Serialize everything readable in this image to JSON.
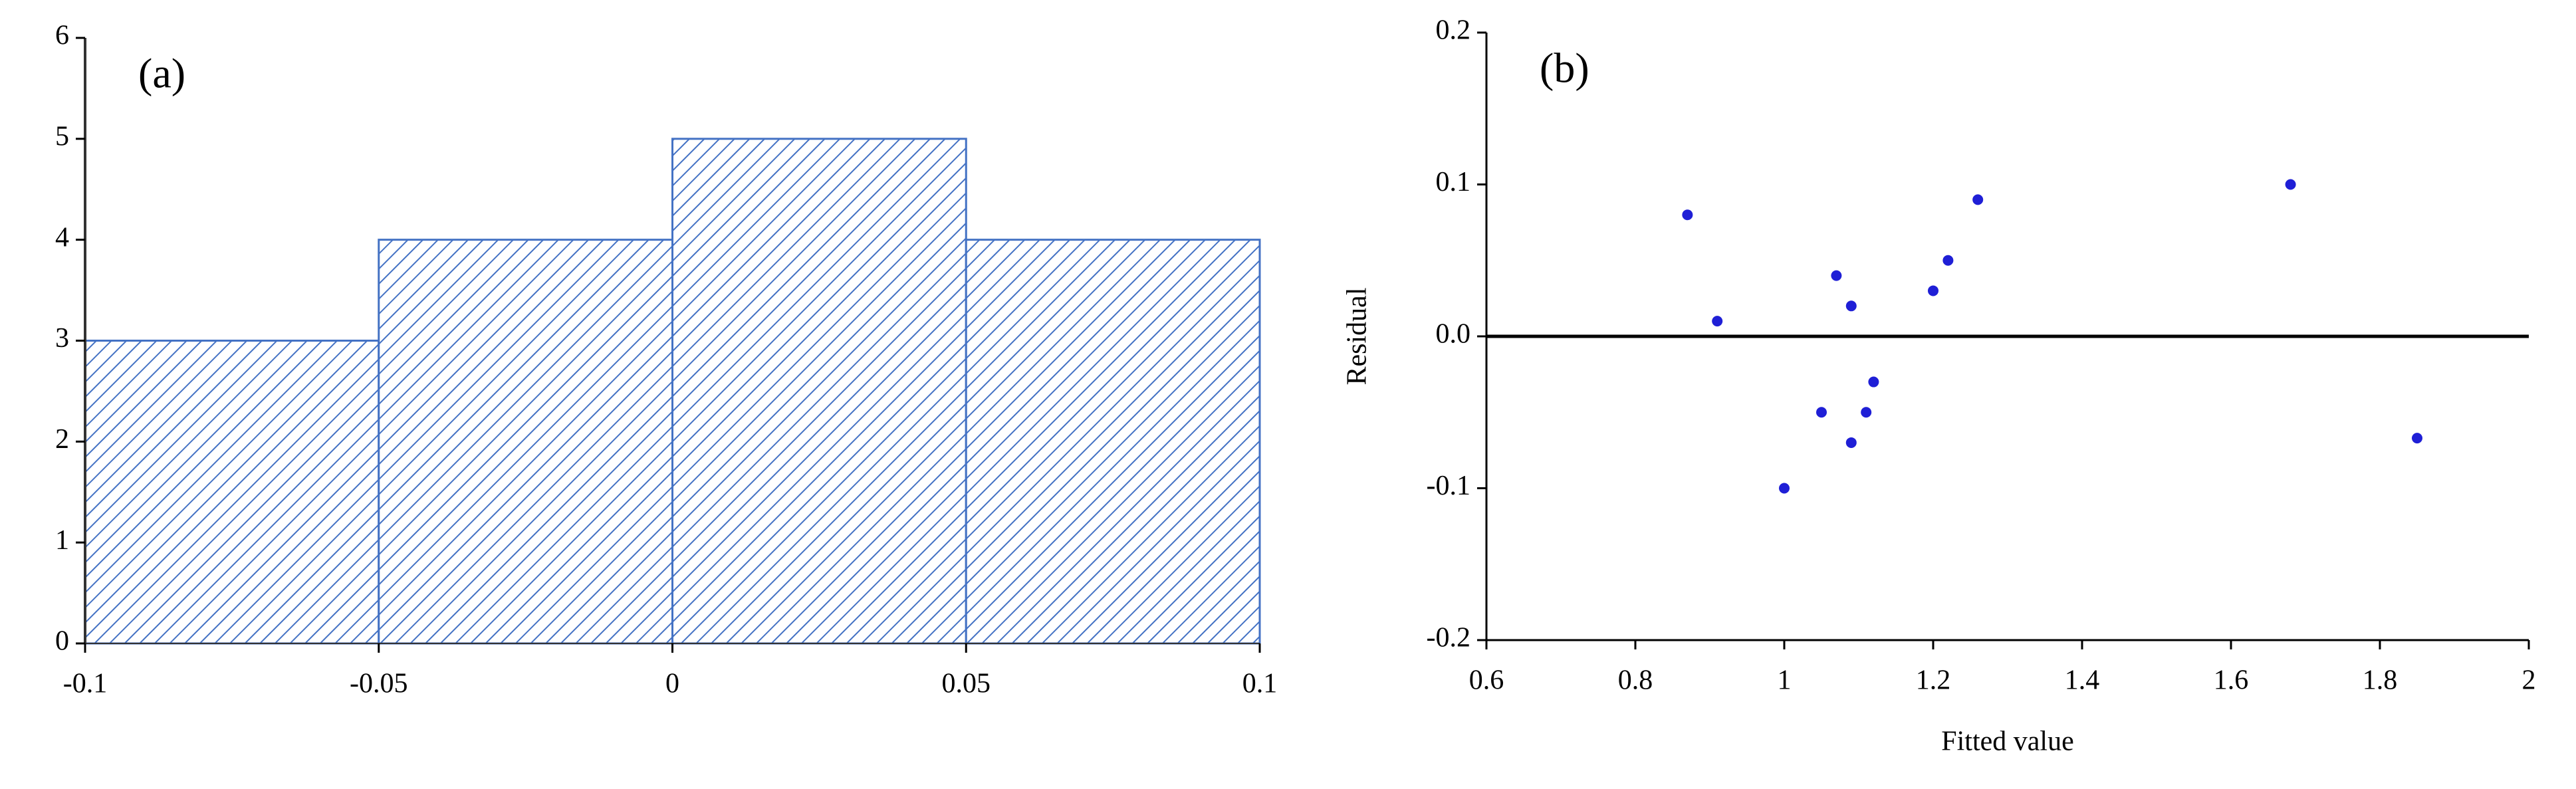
{
  "chart_data": [
    {
      "type": "histogram",
      "annotation": "(a)",
      "bins": [
        -0.1,
        -0.05,
        0,
        0.05,
        0.1
      ],
      "values": [
        3,
        4,
        5,
        4
      ],
      "color": "#4472c4",
      "xlim": [
        -0.1,
        0.1
      ],
      "xticks": [
        -0.1,
        -0.05,
        0,
        0.05,
        0.1
      ],
      "ylim": [
        0,
        6
      ],
      "yticks": [
        0,
        1,
        2,
        3,
        4,
        5,
        6
      ]
    },
    {
      "type": "scatter",
      "annotation": "(b)",
      "x_label": "Fitted value",
      "y_label": "Residual",
      "x": [
        0.87,
        0.91,
        1.0,
        1.05,
        1.07,
        1.09,
        1.09,
        1.11,
        1.12,
        1.2,
        1.22,
        1.26,
        1.68,
        1.85
      ],
      "values": [
        0.08,
        0.01,
        -0.1,
        -0.05,
        0.04,
        0.02,
        -0.07,
        -0.05,
        -0.03,
        0.03,
        0.05,
        0.09,
        0.1,
        -0.067
      ],
      "color": "#1f1fd6",
      "reference_line": 0,
      "xlim": [
        0.6,
        2
      ],
      "xticks": [
        0.6,
        0.8,
        1,
        1.2,
        1.4,
        1.6,
        1.8,
        2
      ],
      "ylim": [
        -0.2,
        0.2
      ],
      "yticks": [
        -0.2,
        -0.1,
        {
          "value": 0,
          "label": "0.0"
        },
        0.1,
        0.2
      ]
    }
  ]
}
